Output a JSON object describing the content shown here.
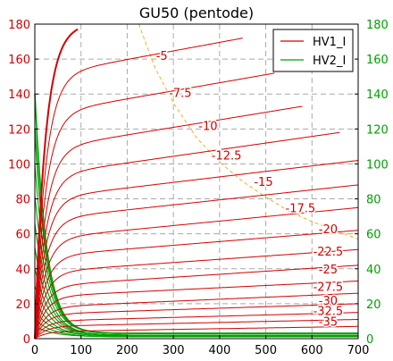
{
  "chart_data": {
    "type": "line",
    "title": "GU50 (pentode)",
    "xlabel": "",
    "ylabel": "",
    "xlim": [
      0,
      700
    ],
    "ylim": [
      0,
      180
    ],
    "x_ticks": [
      "0",
      "100",
      "200",
      "300",
      "400",
      "500",
      "600",
      "700"
    ],
    "y_ticks_left": [
      "0",
      "20",
      "40",
      "60",
      "80",
      "100",
      "120",
      "140",
      "160",
      "180"
    ],
    "y_ticks_right": [
      "0",
      "20",
      "40",
      "60",
      "80",
      "100",
      "120",
      "140",
      "160",
      "180"
    ],
    "grid": true,
    "legend": {
      "placement": "top-right",
      "entries": [
        {
          "name": "HV1_I",
          "color": "#d40000"
        },
        {
          "name": "HV2_I",
          "color": "#00a000"
        }
      ]
    },
    "colors": {
      "series1": "#d40000",
      "series2": "#00a000",
      "power_curve": "#f0b020",
      "grid": "#aaaaaa",
      "right_axis": "#00a000"
    },
    "grid_voltage_labels": [
      {
        "label": "-5",
        "x": 275,
        "y": 162
      },
      {
        "label": "-7.5",
        "x": 315,
        "y": 141
      },
      {
        "label": "-10",
        "x": 375,
        "y": 122
      },
      {
        "label": "-12.5",
        "x": 415,
        "y": 105
      },
      {
        "label": "-15",
        "x": 495,
        "y": 90
      },
      {
        "label": "-17.5",
        "x": 575,
        "y": 75
      },
      {
        "label": "-20",
        "x": 635,
        "y": 63
      },
      {
        "label": "-22.5",
        "x": 635,
        "y": 50
      },
      {
        "label": "-25",
        "x": 635,
        "y": 40
      },
      {
        "label": "-27.5",
        "x": 635,
        "y": 30
      },
      {
        "label": "-30",
        "x": 635,
        "y": 22
      },
      {
        "label": "-32.5",
        "x": 635,
        "y": 16
      },
      {
        "label": "-35",
        "x": 635,
        "y": 10
      }
    ],
    "series_red": [
      {
        "knee_x": 50,
        "plateau": 178,
        "end_y": 180,
        "end_x": 95
      },
      {
        "knee_x": 50,
        "plateau": 150,
        "end_y": 172,
        "end_x": 450
      },
      {
        "knee_x": 50,
        "plateau": 128,
        "end_y": 152,
        "end_x": 520
      },
      {
        "knee_x": 50,
        "plateau": 108,
        "end_y": 133,
        "end_x": 580
      },
      {
        "knee_x": 50,
        "plateau": 93,
        "end_y": 118,
        "end_x": 660
      },
      {
        "knee_x": 50,
        "plateau": 80,
        "end_y": 102,
        "end_x": 700
      },
      {
        "knee_x": 50,
        "plateau": 68,
        "end_y": 88,
        "end_x": 700
      },
      {
        "knee_x": 50,
        "plateau": 57,
        "end_y": 75,
        "end_x": 700
      },
      {
        "knee_x": 50,
        "plateau": 47,
        "end_y": 62,
        "end_x": 700
      },
      {
        "knee_x": 50,
        "plateau": 38,
        "end_y": 51,
        "end_x": 700
      },
      {
        "knee_x": 50,
        "plateau": 30,
        "end_y": 42,
        "end_x": 700
      },
      {
        "knee_x": 50,
        "plateau": 24,
        "end_y": 33,
        "end_x": 700
      },
      {
        "knee_x": 50,
        "plateau": 18,
        "end_y": 26,
        "end_x": 700
      },
      {
        "knee_x": 50,
        "plateau": 14,
        "end_y": 20,
        "end_x": 700
      },
      {
        "knee_x": 50,
        "plateau": 10,
        "end_y": 15,
        "end_x": 700
      },
      {
        "knee_x": 50,
        "plateau": 7,
        "end_y": 11,
        "end_x": 700
      },
      {
        "knee_x": 50,
        "plateau": 4,
        "end_y": 7,
        "end_x": 700
      }
    ],
    "series_green": [
      {
        "start_y": 140,
        "end_y": 3
      },
      {
        "start_y": 120,
        "end_y": 3
      },
      {
        "start_y": 100,
        "end_y": 3
      },
      {
        "start_y": 82,
        "end_y": 3
      },
      {
        "start_y": 66,
        "end_y": 2
      },
      {
        "start_y": 52,
        "end_y": 2
      },
      {
        "start_y": 40,
        "end_y": 2
      },
      {
        "start_y": 30,
        "end_y": 2
      },
      {
        "start_y": 22,
        "end_y": 1.5
      },
      {
        "start_y": 16,
        "end_y": 1.5
      },
      {
        "start_y": 11,
        "end_y": 1
      },
      {
        "start_y": 7,
        "end_y": 1
      }
    ],
    "power_curve": [
      {
        "x": 225,
        "y": 180
      },
      {
        "x": 260,
        "y": 155
      },
      {
        "x": 300,
        "y": 135
      },
      {
        "x": 350,
        "y": 115
      },
      {
        "x": 400,
        "y": 101
      },
      {
        "x": 450,
        "y": 90
      },
      {
        "x": 500,
        "y": 81
      },
      {
        "x": 550,
        "y": 73
      },
      {
        "x": 600,
        "y": 67
      },
      {
        "x": 650,
        "y": 62
      },
      {
        "x": 700,
        "y": 57
      }
    ]
  }
}
